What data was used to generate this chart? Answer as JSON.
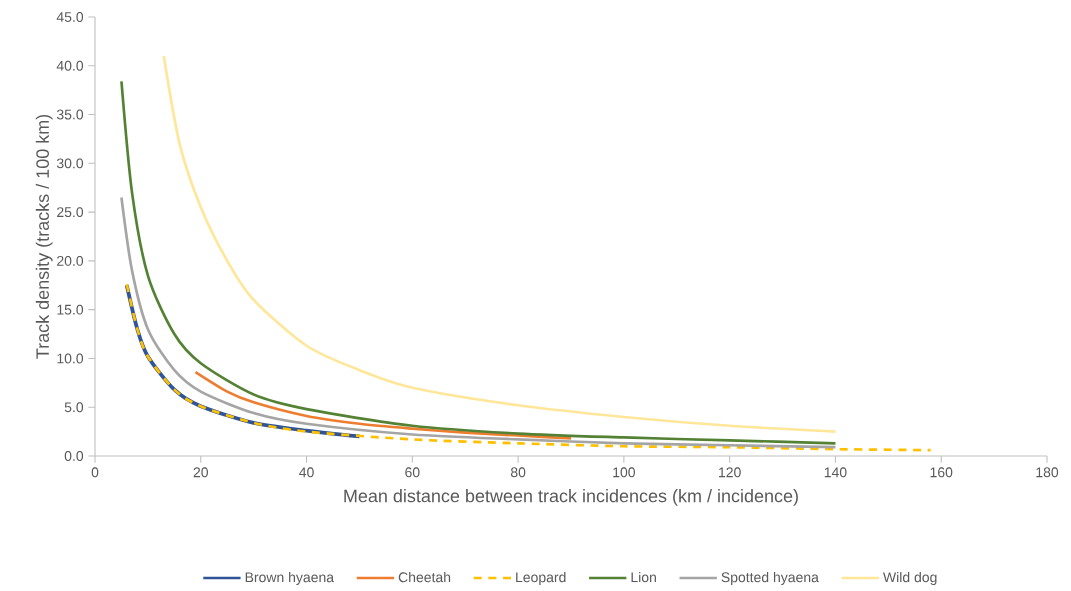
{
  "chart_data": {
    "type": "line",
    "xlabel": "Mean distance between track incidences (km / incidence)",
    "ylabel": "Track density (tracks / 100 km)",
    "xlim": [
      0,
      180
    ],
    "xticks": [
      0,
      20,
      40,
      60,
      80,
      100,
      120,
      140,
      160,
      180
    ],
    "ylim": [
      0,
      45
    ],
    "yticks": [
      {
        "value": 0,
        "label": "0.0"
      },
      {
        "value": 5,
        "label": "5.0"
      },
      {
        "value": 10,
        "label": "10.0"
      },
      {
        "value": 15,
        "label": "15.0"
      },
      {
        "value": 20,
        "label": "20.0"
      },
      {
        "value": 25,
        "label": "25.0"
      },
      {
        "value": 30,
        "label": "30.0"
      },
      {
        "value": 35,
        "label": "35.0"
      },
      {
        "value": 40,
        "label": "40.0"
      },
      {
        "value": 45,
        "label": "45.0"
      }
    ],
    "legend": "bottom",
    "marker": "none",
    "grid": false,
    "series": [
      {
        "name": "Brown hyaena",
        "color": "#2f5597",
        "line_style": "solid",
        "x": [
          6,
          8,
          10,
          15,
          20,
          30,
          40,
          50
        ],
        "values": [
          17.5,
          13,
          10.2,
          6.8,
          5.1,
          3.4,
          2.6,
          2.0
        ]
      },
      {
        "name": "Cheetah",
        "color": "#ed7d31",
        "line_style": "solid",
        "x": [
          19,
          25,
          30,
          40,
          50,
          60,
          70,
          80,
          90
        ],
        "values": [
          8.6,
          6.6,
          5.5,
          4.1,
          3.3,
          2.8,
          2.4,
          2.1,
          1.8
        ]
      },
      {
        "name": "Leopard",
        "color": "#ffc000",
        "line_style": "dashed",
        "x": [
          6,
          8,
          10,
          15,
          20,
          30,
          40,
          60,
          80,
          100,
          120,
          140,
          158
        ],
        "values": [
          17.6,
          13,
          10.2,
          6.8,
          5.1,
          3.4,
          2.5,
          1.7,
          1.3,
          1.0,
          0.9,
          0.7,
          0.6
        ]
      },
      {
        "name": "Lion",
        "color": "#548235",
        "line_style": "solid",
        "x": [
          5,
          7,
          10,
          15,
          20,
          30,
          40,
          60,
          80,
          100,
          120,
          140
        ],
        "values": [
          38.4,
          27,
          18.5,
          12.5,
          9.5,
          6.3,
          4.8,
          3.1,
          2.3,
          1.9,
          1.6,
          1.3
        ]
      },
      {
        "name": "Spotted hyaena",
        "color": "#a5a5a5",
        "line_style": "solid",
        "x": [
          5,
          7,
          10,
          15,
          20,
          30,
          40,
          60,
          80,
          100,
          120,
          140
        ],
        "values": [
          26.5,
          19,
          13,
          8.8,
          6.6,
          4.4,
          3.3,
          2.2,
          1.7,
          1.3,
          1.1,
          0.9
        ]
      },
      {
        "name": "Wild dog",
        "color": "#ffe699",
        "line_style": "solid",
        "x": [
          13,
          16,
          20,
          25,
          30,
          40,
          50,
          60,
          80,
          100,
          120,
          140
        ],
        "values": [
          41,
          32,
          25.5,
          20,
          16,
          11.3,
          8.8,
          7,
          5.2,
          4,
          3.1,
          2.5
        ]
      }
    ]
  }
}
